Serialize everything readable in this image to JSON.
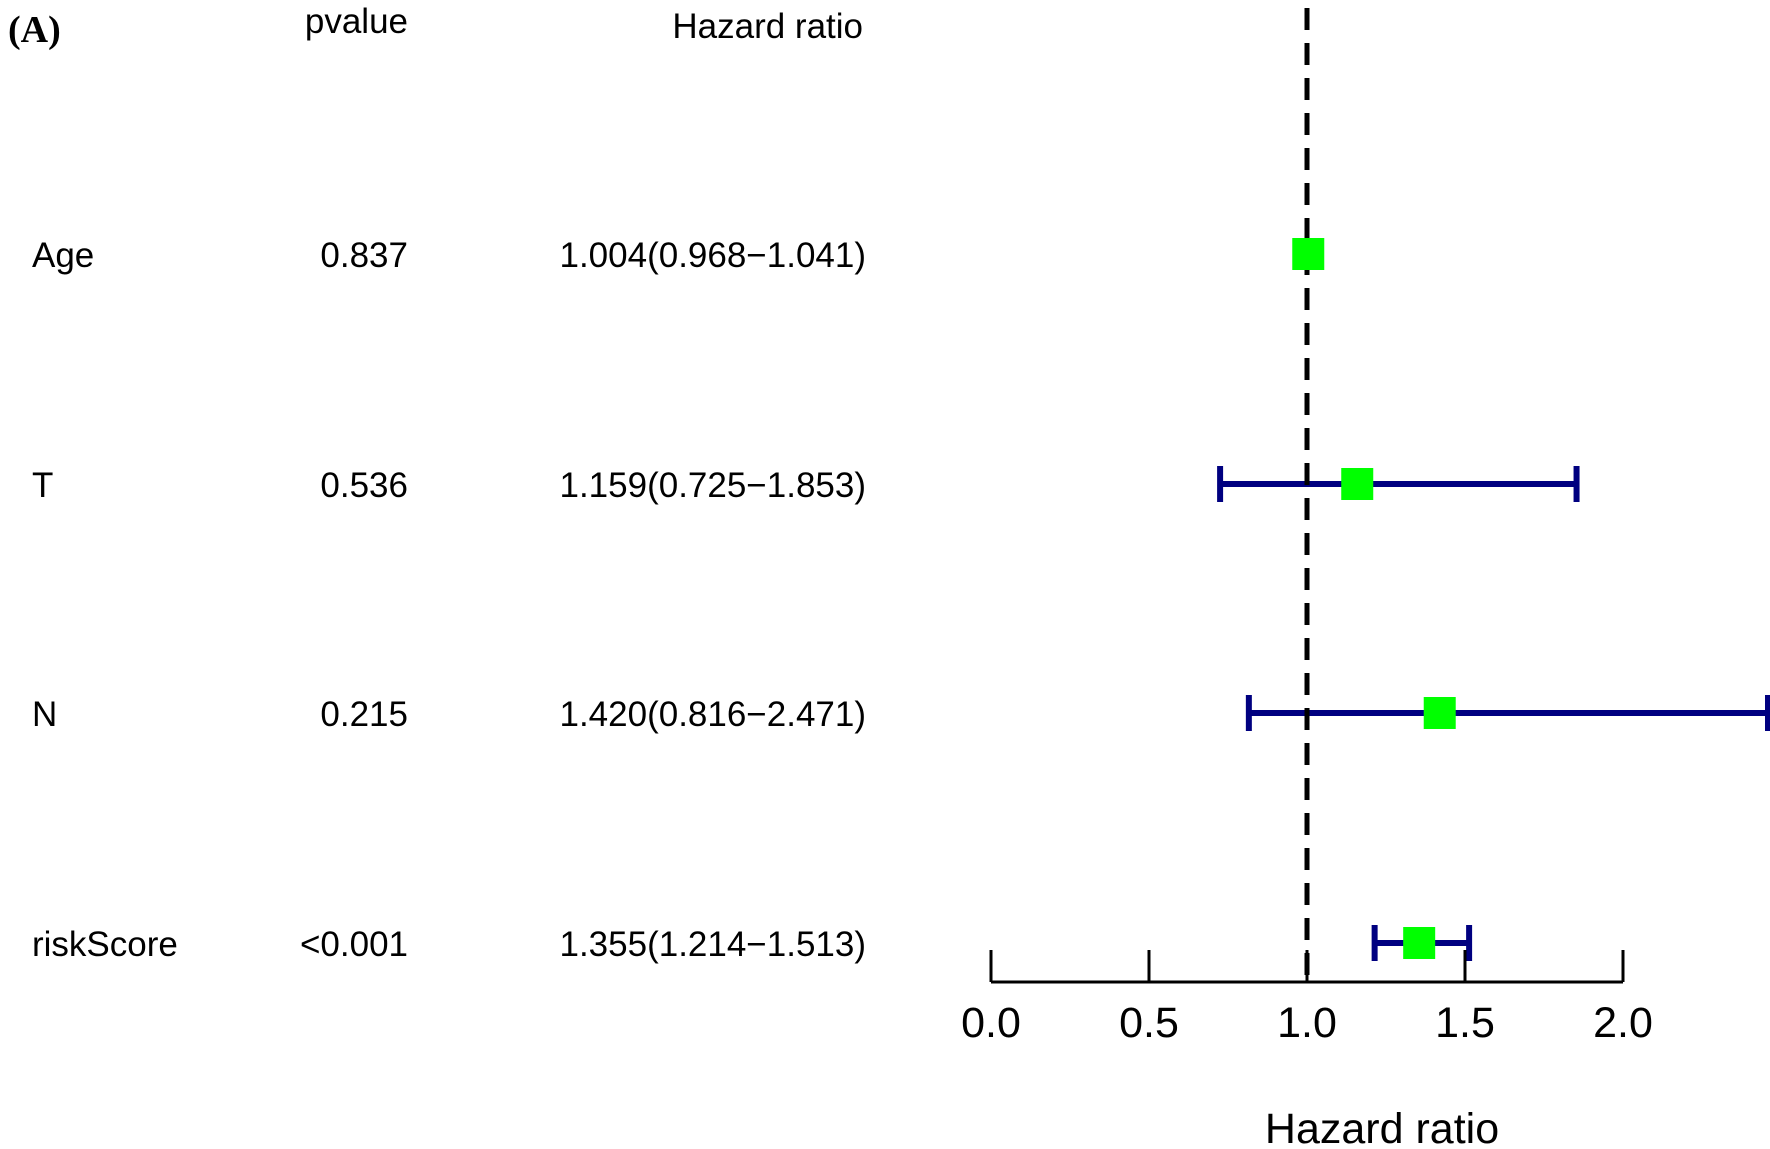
{
  "chart_data": {
    "type": "forest",
    "panel_label": "(A)",
    "column_headers": {
      "pvalue": "pvalue",
      "hazard_ratio": "Hazard ratio"
    },
    "rows": [
      {
        "label": "Age",
        "pvalue": "0.837",
        "hr_text": "1.004(0.968−1.041)",
        "hr": 1.004,
        "lower": 0.968,
        "upper": 1.041
      },
      {
        "label": "T",
        "pvalue": "0.536",
        "hr_text": "1.159(0.725−1.853)",
        "hr": 1.159,
        "lower": 0.725,
        "upper": 1.853
      },
      {
        "label": "N",
        "pvalue": "0.215",
        "hr_text": "1.420(0.816−2.471)",
        "hr": 1.42,
        "lower": 0.816,
        "upper": 2.471
      },
      {
        "label": "riskScore",
        "pvalue": "<0.001",
        "hr_text": "1.355(1.214−1.513)",
        "hr": 1.355,
        "lower": 1.214,
        "upper": 1.513
      }
    ],
    "xaxis": {
      "label": "Hazard ratio",
      "range": [
        0.0,
        2.0
      ],
      "ticks": [
        0.0,
        0.5,
        1.0,
        1.5,
        2.0
      ],
      "tick_labels": [
        "0.0",
        "0.5",
        "1.0",
        "1.5",
        "2.0"
      ]
    },
    "reference_line": 1.0,
    "colors": {
      "point": "#00ff00",
      "ci_line": "#000080",
      "reference": "#000000",
      "text": "#000000"
    }
  }
}
